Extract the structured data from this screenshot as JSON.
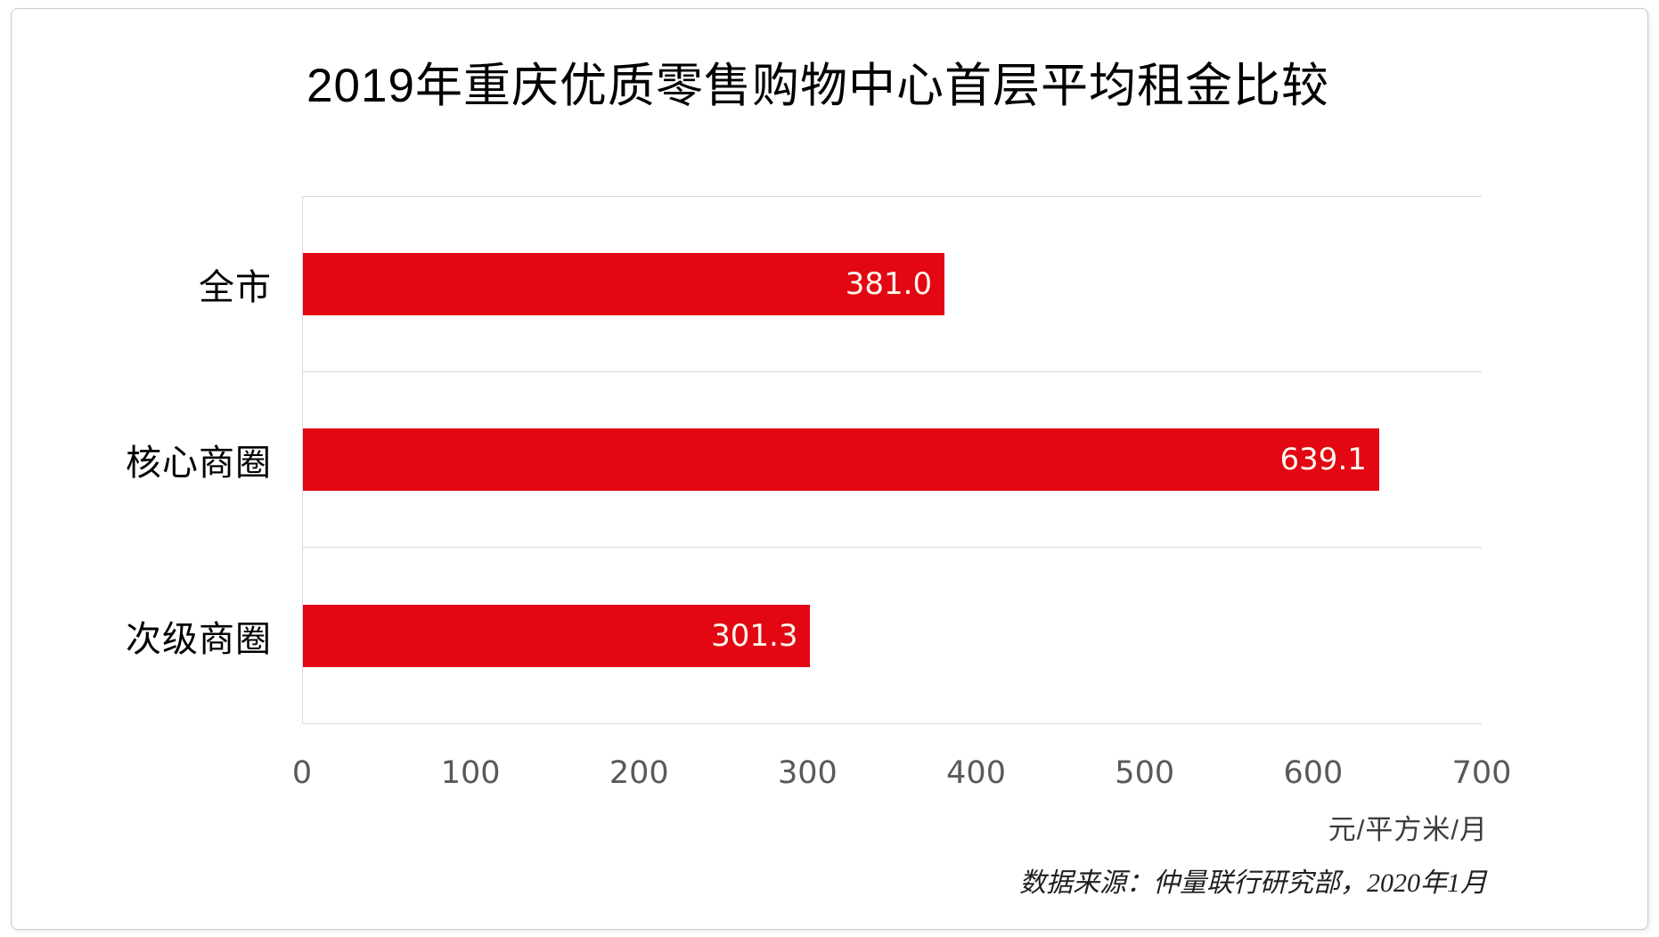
{
  "chart_data": {
    "type": "bar",
    "orientation": "horizontal",
    "title": "2019年重庆优质零售购物中心首层平均租金比较",
    "categories": [
      "全市",
      "核心商圈",
      "次级商圈"
    ],
    "values": [
      381.0,
      639.1,
      301.3
    ],
    "value_labels": [
      "381.0",
      "639.1",
      "301.3"
    ],
    "xlim": [
      0,
      700
    ],
    "xticks": [
      0,
      100,
      200,
      300,
      400,
      500,
      600,
      700
    ],
    "x_tick_interval": 100,
    "unit_label": "元/平方米/月",
    "source_note": "数据来源：仲量联行研究部，2020年1月",
    "bar_color": "#e30613",
    "bar_label_color": "#fdf8ee",
    "axis_line_color": "#d9d9d9",
    "tick_label_color": "#595959",
    "grid": "horizontal row separator lines only",
    "legend_position": "none",
    "data_label_position": "inside-end"
  }
}
